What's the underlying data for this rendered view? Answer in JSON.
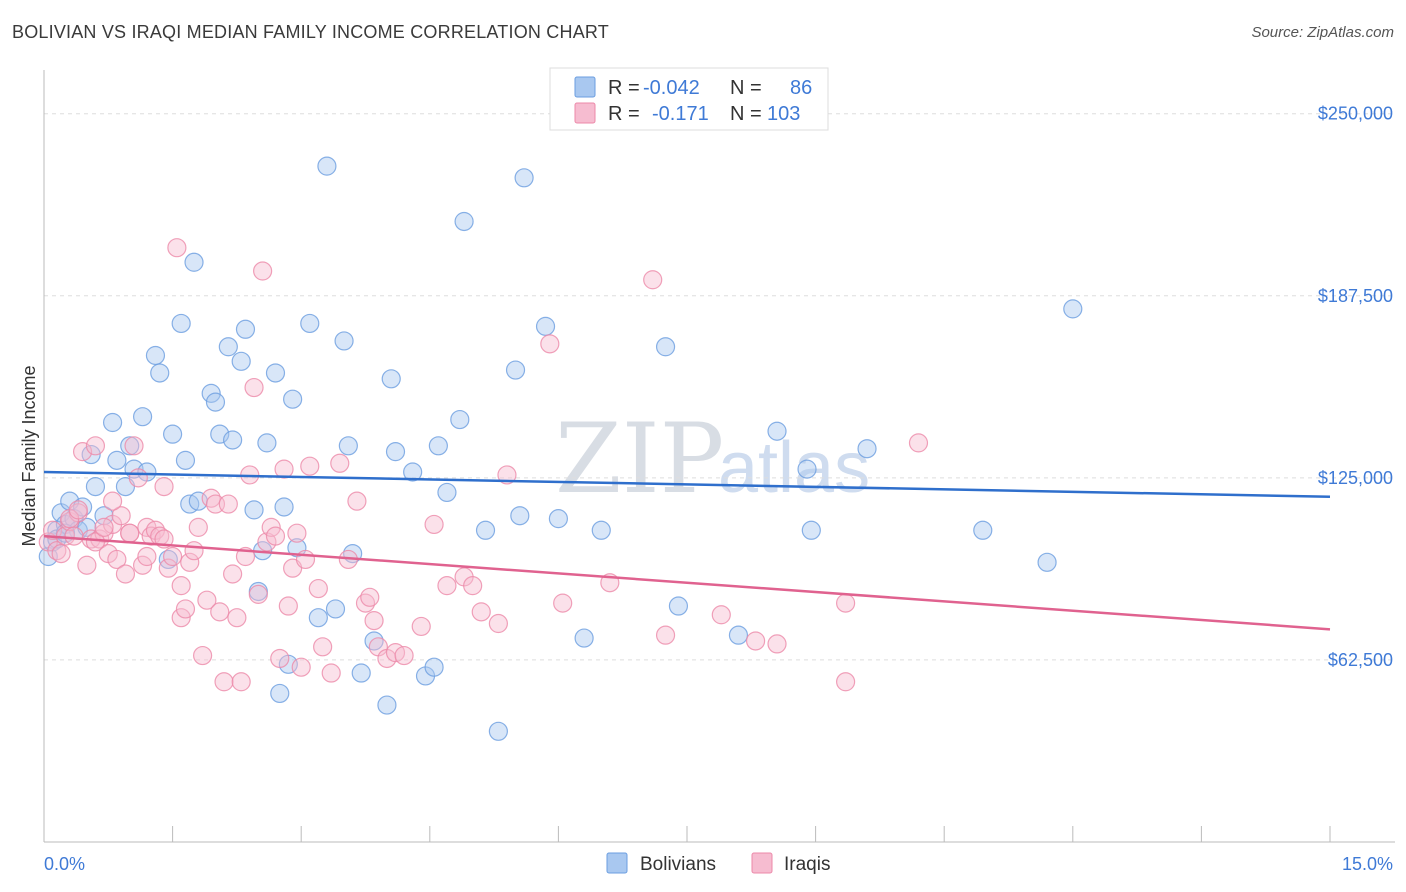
{
  "title": "BOLIVIAN VS IRAQI MEDIAN FAMILY INCOME CORRELATION CHART",
  "source": "Source: ZipAtlas.com",
  "watermark": {
    "zip": "ZIP",
    "atlas": "atlas"
  },
  "colors": {
    "bolivian_fill": "#a9c8f0",
    "bolivian_stroke": "#6b9ee0",
    "bolivian_line": "#2f6fcc",
    "iraqi_fill": "#f6bcd0",
    "iraqi_stroke": "#ec89a9",
    "iraqi_line": "#e0628f",
    "axis_label": "#3f7ad6",
    "grid": "#dddddd"
  },
  "legend": {
    "rows": [
      {
        "r_label": "R =",
        "r_value": "-0.042",
        "n_label": "N =",
        "n_value": "86"
      },
      {
        "r_label": "R =",
        "r_value": "-0.171",
        "n_label": "N =",
        "n_value": "103"
      }
    ]
  },
  "bottom_legend": [
    "Bolivians",
    "Iraqis"
  ],
  "chart_data": {
    "type": "scatter",
    "title": "BOLIVIAN VS IRAQI MEDIAN FAMILY INCOME CORRELATION CHART",
    "xlabel": "",
    "ylabel": "Median Family Income",
    "xlim": [
      0,
      15
    ],
    "ylim": [
      0,
      265000
    ],
    "y_ticks": [
      62500,
      125000,
      187500,
      250000
    ],
    "y_tick_labels": [
      "$62,500",
      "$125,000",
      "$187,500",
      "$250,000"
    ],
    "x_tick_labels": [
      "0.0%",
      "15.0%"
    ],
    "grid": true,
    "series": [
      {
        "name": "Bolivians",
        "r": -0.042,
        "n": 86,
        "trend": {
          "x": [
            0,
            15
          ],
          "y": [
            127000,
            118500
          ]
        },
        "points": [
          [
            0.05,
            98000
          ],
          [
            0.1,
            103000
          ],
          [
            0.15,
            107000
          ],
          [
            0.2,
            113000
          ],
          [
            0.25,
            109000
          ],
          [
            0.3,
            117000
          ],
          [
            0.35,
            111000
          ],
          [
            0.4,
            107000
          ],
          [
            0.45,
            115000
          ],
          [
            0.55,
            133000
          ],
          [
            0.6,
            122000
          ],
          [
            0.7,
            112000
          ],
          [
            0.8,
            144000
          ],
          [
            0.85,
            131000
          ],
          [
            0.95,
            122000
          ],
          [
            1.0,
            136000
          ],
          [
            1.05,
            128000
          ],
          [
            1.15,
            146000
          ],
          [
            1.2,
            127000
          ],
          [
            1.3,
            167000
          ],
          [
            1.35,
            161000
          ],
          [
            1.45,
            97000
          ],
          [
            1.5,
            140000
          ],
          [
            1.6,
            178000
          ],
          [
            1.65,
            131000
          ],
          [
            1.7,
            116000
          ],
          [
            1.75,
            199000
          ],
          [
            1.8,
            117000
          ],
          [
            1.95,
            154000
          ],
          [
            2.0,
            151000
          ],
          [
            2.05,
            140000
          ],
          [
            2.15,
            170000
          ],
          [
            2.2,
            138000
          ],
          [
            2.3,
            165000
          ],
          [
            2.35,
            176000
          ],
          [
            2.45,
            114000
          ],
          [
            2.5,
            86000
          ],
          [
            2.55,
            100000
          ],
          [
            2.6,
            137000
          ],
          [
            2.7,
            161000
          ],
          [
            2.75,
            51000
          ],
          [
            2.8,
            115000
          ],
          [
            2.85,
            61000
          ],
          [
            2.9,
            152000
          ],
          [
            2.95,
            101000
          ],
          [
            3.1,
            178000
          ],
          [
            3.2,
            77000
          ],
          [
            3.3,
            232000
          ],
          [
            3.4,
            80000
          ],
          [
            3.5,
            172000
          ],
          [
            3.55,
            136000
          ],
          [
            3.6,
            99000
          ],
          [
            3.7,
            58000
          ],
          [
            3.85,
            69000
          ],
          [
            4.0,
            47000
          ],
          [
            4.05,
            159000
          ],
          [
            4.1,
            134000
          ],
          [
            4.3,
            127000
          ],
          [
            4.45,
            57000
          ],
          [
            4.55,
            60000
          ],
          [
            4.6,
            136000
          ],
          [
            4.7,
            120000
          ],
          [
            4.85,
            145000
          ],
          [
            4.9,
            213000
          ],
          [
            5.15,
            107000
          ],
          [
            5.3,
            38000
          ],
          [
            5.5,
            162000
          ],
          [
            5.55,
            112000
          ],
          [
            5.6,
            228000
          ],
          [
            5.85,
            177000
          ],
          [
            6.0,
            111000
          ],
          [
            6.3,
            70000
          ],
          [
            6.5,
            107000
          ],
          [
            7.25,
            170000
          ],
          [
            7.4,
            81000
          ],
          [
            8.1,
            71000
          ],
          [
            8.55,
            141000
          ],
          [
            8.9,
            128000
          ],
          [
            8.95,
            107000
          ],
          [
            9.6,
            135000
          ],
          [
            10.95,
            107000
          ],
          [
            11.7,
            96000
          ],
          [
            12.0,
            183000
          ],
          [
            0.15,
            104000
          ],
          [
            0.25,
            106000
          ],
          [
            0.5,
            108000
          ]
        ]
      },
      {
        "name": "Iraqis",
        "r": -0.171,
        "n": 103,
        "trend": {
          "x": [
            0,
            15
          ],
          "y": [
            105000,
            73000
          ]
        },
        "points": [
          [
            0.05,
            103000
          ],
          [
            0.1,
            107000
          ],
          [
            0.15,
            100000
          ],
          [
            0.2,
            99000
          ],
          [
            0.25,
            105000
          ],
          [
            0.3,
            110000
          ],
          [
            0.35,
            105000
          ],
          [
            0.4,
            113000
          ],
          [
            0.45,
            134000
          ],
          [
            0.5,
            95000
          ],
          [
            0.55,
            104000
          ],
          [
            0.6,
            136000
          ],
          [
            0.65,
            104000
          ],
          [
            0.7,
            106000
          ],
          [
            0.75,
            99000
          ],
          [
            0.8,
            109000
          ],
          [
            0.85,
            97000
          ],
          [
            0.9,
            112000
          ],
          [
            0.95,
            92000
          ],
          [
            1.0,
            106000
          ],
          [
            1.05,
            136000
          ],
          [
            1.1,
            125000
          ],
          [
            1.15,
            95000
          ],
          [
            1.2,
            108000
          ],
          [
            1.25,
            105000
          ],
          [
            1.3,
            107000
          ],
          [
            1.35,
            105000
          ],
          [
            1.4,
            122000
          ],
          [
            1.45,
            94000
          ],
          [
            1.5,
            98000
          ],
          [
            1.55,
            204000
          ],
          [
            1.6,
            77000
          ],
          [
            1.65,
            80000
          ],
          [
            1.7,
            96000
          ],
          [
            1.75,
            100000
          ],
          [
            1.8,
            108000
          ],
          [
            1.85,
            64000
          ],
          [
            1.9,
            83000
          ],
          [
            1.95,
            118000
          ],
          [
            2.0,
            116000
          ],
          [
            2.05,
            79000
          ],
          [
            2.1,
            55000
          ],
          [
            2.15,
            116000
          ],
          [
            2.2,
            92000
          ],
          [
            2.25,
            77000
          ],
          [
            2.3,
            55000
          ],
          [
            2.35,
            98000
          ],
          [
            2.4,
            126000
          ],
          [
            2.45,
            156000
          ],
          [
            2.5,
            85000
          ],
          [
            2.55,
            196000
          ],
          [
            2.6,
            103000
          ],
          [
            2.65,
            108000
          ],
          [
            2.7,
            105000
          ],
          [
            2.75,
            63000
          ],
          [
            2.8,
            128000
          ],
          [
            2.85,
            81000
          ],
          [
            2.9,
            94000
          ],
          [
            2.95,
            106000
          ],
          [
            3.0,
            60000
          ],
          [
            3.05,
            97000
          ],
          [
            3.1,
            129000
          ],
          [
            3.2,
            87000
          ],
          [
            3.25,
            67000
          ],
          [
            3.35,
            58000
          ],
          [
            3.45,
            130000
          ],
          [
            3.55,
            97000
          ],
          [
            3.65,
            117000
          ],
          [
            3.75,
            82000
          ],
          [
            3.8,
            84000
          ],
          [
            3.85,
            76000
          ],
          [
            3.9,
            67000
          ],
          [
            4.0,
            63000
          ],
          [
            4.1,
            65000
          ],
          [
            4.2,
            64000
          ],
          [
            4.4,
            74000
          ],
          [
            4.55,
            109000
          ],
          [
            4.7,
            88000
          ],
          [
            4.9,
            91000
          ],
          [
            5.0,
            88000
          ],
          [
            5.1,
            79000
          ],
          [
            5.3,
            75000
          ],
          [
            5.4,
            126000
          ],
          [
            5.9,
            171000
          ],
          [
            6.05,
            82000
          ],
          [
            6.6,
            89000
          ],
          [
            7.1,
            193000
          ],
          [
            7.25,
            71000
          ],
          [
            7.9,
            78000
          ],
          [
            8.3,
            69000
          ],
          [
            8.55,
            68000
          ],
          [
            9.35,
            82000
          ],
          [
            9.35,
            55000
          ],
          [
            10.2,
            137000
          ],
          [
            0.3,
            111000
          ],
          [
            0.4,
            114000
          ],
          [
            0.6,
            103000
          ],
          [
            0.7,
            108000
          ],
          [
            1.0,
            106000
          ],
          [
            1.2,
            98000
          ],
          [
            1.4,
            104000
          ],
          [
            0.8,
            117000
          ],
          [
            1.6,
            88000
          ]
        ]
      }
    ]
  }
}
